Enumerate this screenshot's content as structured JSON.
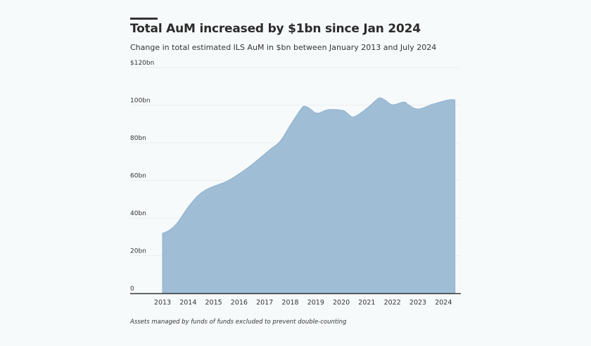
{
  "header": {
    "title": "Total AuM increased by $1bn since Jan 2024",
    "subtitle": "Change in total estimated ILS AuM in $bn between January 2013 and July 2024"
  },
  "footer": {
    "note": "Assets managed by funds of funds excluded to prevent double-counting"
  },
  "colors": {
    "area_fill": "#a0bdd6",
    "area_stroke": "#8fb0cd",
    "background": "#f7fafb",
    "grid": "#ebeef0",
    "axis": "#333333"
  },
  "chart_data": {
    "type": "area",
    "title": "Total AuM increased by $1bn since Jan 2024",
    "subtitle": "Change in total estimated ILS AuM in $bn between January 2013 and July 2024",
    "xlabel": "",
    "ylabel": "",
    "ylim": [
      0,
      120
    ],
    "xlim": [
      2011.75,
      2024.7
    ],
    "grid": true,
    "legend": "none",
    "yticks": [
      {
        "value": 0,
        "label": "0"
      },
      {
        "value": 20,
        "label": "20bn"
      },
      {
        "value": 40,
        "label": "40bn"
      },
      {
        "value": 60,
        "label": "60bn"
      },
      {
        "value": 80,
        "label": "80bn"
      },
      {
        "value": 100,
        "label": "100bn"
      },
      {
        "value": 120,
        "label": "$120bn"
      }
    ],
    "xticks": [
      {
        "value": 2013,
        "label": "2013"
      },
      {
        "value": 2014,
        "label": "2014"
      },
      {
        "value": 2015,
        "label": "2015"
      },
      {
        "value": 2016,
        "label": "2016"
      },
      {
        "value": 2017,
        "label": "2017"
      },
      {
        "value": 2018,
        "label": "2018"
      },
      {
        "value": 2019,
        "label": "2019"
      },
      {
        "value": 2020,
        "label": "2020"
      },
      {
        "value": 2021,
        "label": "2021"
      },
      {
        "value": 2022,
        "label": "2022"
      },
      {
        "value": 2023,
        "label": "2023"
      },
      {
        "value": 2024,
        "label": "2024"
      }
    ],
    "series": [
      {
        "name": "Total estimated ILS AuM ($bn)",
        "x": [
          2013.0,
          2013.3,
          2013.6,
          2014.1,
          2014.65,
          2015.5,
          2016.0,
          2016.5,
          2017.2,
          2017.6,
          2018.0,
          2018.4,
          2018.55,
          2018.75,
          2019.05,
          2019.5,
          2020.05,
          2020.25,
          2020.5,
          2021.0,
          2021.35,
          2021.5,
          2021.7,
          2022.0,
          2022.45,
          2022.6,
          2023.0,
          2023.6,
          2024.2,
          2024.45
        ],
        "values": [
          31.8,
          33.8,
          37.8,
          47.5,
          54.6,
          59.4,
          63.5,
          68.4,
          76.3,
          80.7,
          89.3,
          97.5,
          99.4,
          98.3,
          95.7,
          97.6,
          97.2,
          95.5,
          93.8,
          98.3,
          102.5,
          103.9,
          102.8,
          100.2,
          101.7,
          100.5,
          97.9,
          100.6,
          102.8,
          102.8
        ]
      }
    ]
  }
}
